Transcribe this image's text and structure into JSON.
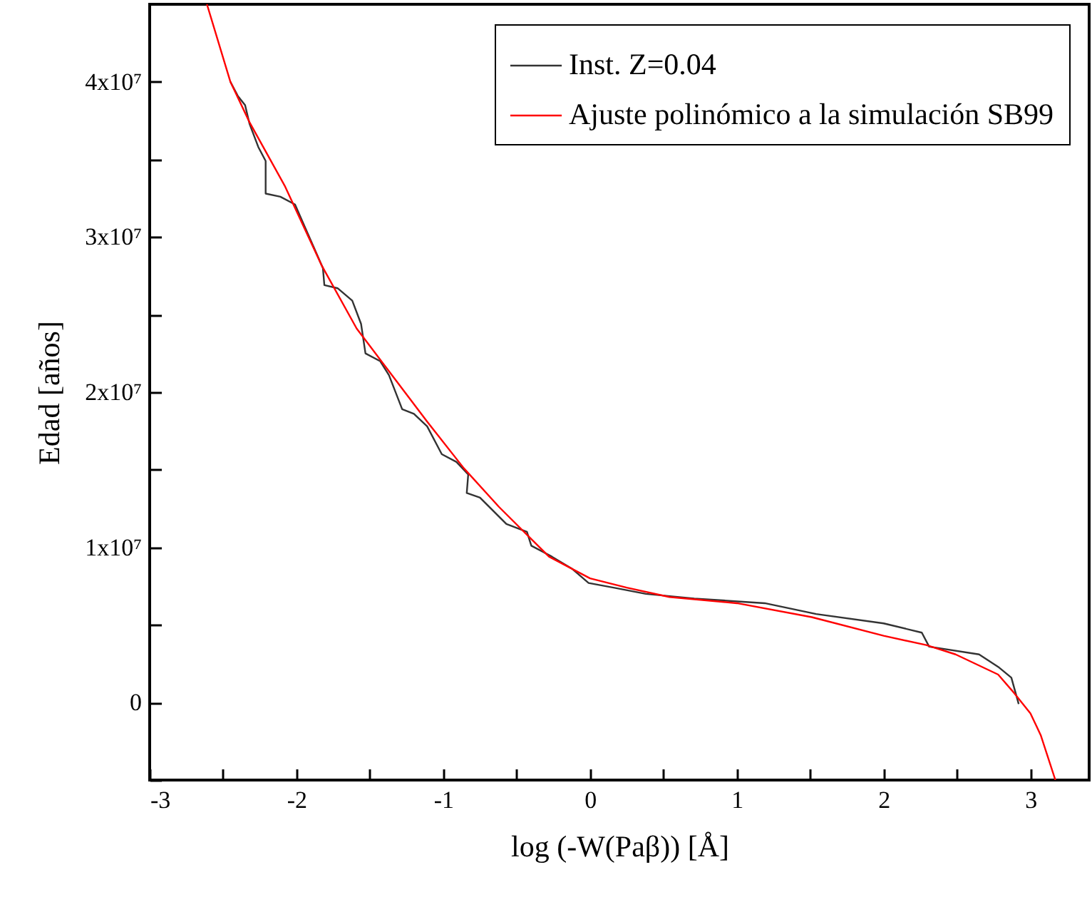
{
  "chart_data": {
    "type": "line",
    "xlabel": "log (-W(Paβ)) [Å]",
    "ylabel": "Edad [años]",
    "xlim": [
      -3,
      3.4
    ],
    "ylim": [
      -5000000,
      45000000
    ],
    "xticks": [
      -3,
      {
        "value": -2.5,
        "label": null
      },
      -2,
      {
        "value": -1.5,
        "label": null
      },
      -1,
      {
        "value": -0.5,
        "label": null
      },
      0,
      {
        "value": 0.5,
        "label": null
      },
      1,
      {
        "value": 1.5,
        "label": null
      },
      2,
      {
        "value": 2.5,
        "label": null
      },
      3
    ],
    "yticks": [
      {
        "value": -5000000,
        "label": null
      },
      0,
      {
        "value": 5000000,
        "label": null
      },
      {
        "value": 10000000,
        "label": "1x10⁷"
      },
      {
        "value": 15000000,
        "label": null
      },
      {
        "value": 20000000,
        "label": "2x10⁷"
      },
      {
        "value": 25000000,
        "label": null
      },
      {
        "value": 30000000,
        "label": "3x10⁷"
      },
      {
        "value": 35000000,
        "label": null
      },
      {
        "value": 40000000,
        "label": "4x10⁷"
      }
    ],
    "grid": false,
    "legend": "top right",
    "marker": "none",
    "line_style": "solid",
    "series": [
      {
        "name": "Inst. Z=0.04",
        "color": "#333333",
        "x": [
          -2.45,
          -2.4,
          -2.35,
          -2.32,
          -2.26,
          -2.21,
          -2.21,
          -2.11,
          -2.01,
          -1.95,
          -1.88,
          -1.82,
          -1.81,
          -1.72,
          -1.62,
          -1.56,
          -1.53,
          -1.43,
          -1.37,
          -1.28,
          -1.2,
          -1.11,
          -1.01,
          -0.91,
          -0.83,
          -0.84,
          -0.75,
          -0.57,
          -0.43,
          -0.4,
          -0.26,
          -0.12,
          -0.01,
          0.16,
          0.38,
          0.71,
          1.19,
          1.54,
          2.0,
          2.26,
          2.31,
          2.65,
          2.78,
          2.87,
          2.92
        ],
        "values": [
          40000000,
          39100000,
          38500000,
          37300000,
          35800000,
          34900000,
          32800000,
          32600000,
          32100000,
          30800000,
          29300000,
          28000000,
          26900000,
          26700000,
          25900000,
          24400000,
          22500000,
          22000000,
          21100000,
          18900000,
          18600000,
          17800000,
          16000000,
          15500000,
          14700000,
          13500000,
          13200000,
          11500000,
          11000000,
          10100000,
          9400000,
          8600000,
          7700000,
          7400000,
          7000000,
          6700000,
          6400000,
          5700000,
          5100000,
          4500000,
          3600000,
          3100000,
          2300000,
          1600000,
          -100000
        ]
      },
      {
        "name": "Ajuste polinómico a la simulación SB99",
        "color": "#ff0000",
        "x": [
          -2.61,
          -2.45,
          -2.32,
          -2.08,
          -1.83,
          -1.59,
          -1.35,
          -1.11,
          -0.86,
          -0.62,
          -0.28,
          0,
          0.25,
          0.54,
          1.0,
          1.51,
          2.0,
          2.29,
          2.49,
          2.78,
          2.89,
          3.0,
          3.07,
          3.17
        ],
        "values": [
          45000000,
          40000000,
          37400000,
          33300000,
          28200000,
          24100000,
          21100000,
          18100000,
          15100000,
          12600000,
          9400000,
          8000000,
          7400000,
          6800000,
          6400000,
          5500000,
          4300000,
          3700000,
          3100000,
          1800000,
          600000,
          -700000,
          -2100000,
          -5000000
        ]
      }
    ]
  }
}
